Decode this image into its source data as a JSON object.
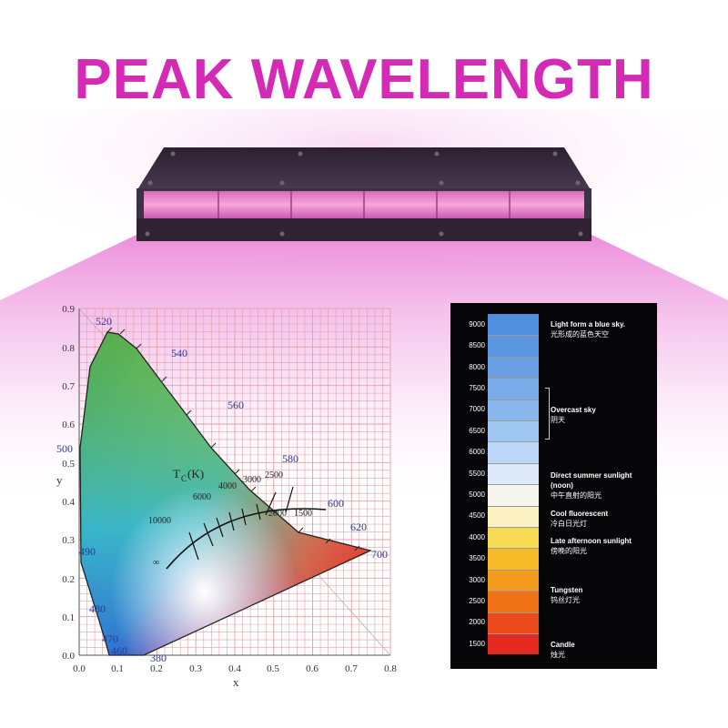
{
  "headline": "PEAK WAVELENGTH",
  "colors": {
    "headline": "#d52ab6",
    "lamp_body": "#3a2d3f",
    "lamp_glow": "#e868d2",
    "chart_bg": "#060608"
  },
  "cie": {
    "y_axis_label": "y",
    "x_axis_label": "x",
    "x_ticks": [
      "0.0",
      "0.1",
      "0.2",
      "0.3",
      "0.4",
      "0.5",
      "0.6",
      "0.7",
      "0.8"
    ],
    "y_ticks": [
      "0.0",
      "0.1",
      "0.2",
      "0.3",
      "0.4",
      "0.5",
      "0.6",
      "0.7",
      "0.8",
      "0.9"
    ],
    "wavelengths": [
      "520",
      "540",
      "560",
      "580",
      "600",
      "620",
      "700",
      "500",
      "490",
      "480",
      "470",
      "460",
      "380"
    ],
    "tc_label": "T",
    "tc_sub": "C",
    "tc_unit": "(K)",
    "cct_marks": [
      "10000",
      "6000",
      "4000",
      "3000",
      "2500",
      "2000",
      "1500",
      "∞"
    ]
  },
  "temperature_scale": {
    "levels": [
      {
        "label": "9000",
        "color": "#4f8fdd"
      },
      {
        "label": "8500",
        "color": "#5b97e0"
      },
      {
        "label": "8000",
        "color": "#689fe3"
      },
      {
        "label": "7500",
        "color": "#78abe8"
      },
      {
        "label": "7000",
        "color": "#89b7ec"
      },
      {
        "label": "6500",
        "color": "#a0c7f1"
      },
      {
        "label": "6000",
        "color": "#bcd8f6"
      },
      {
        "label": "5500",
        "color": "#dde9f8"
      },
      {
        "label": "5000",
        "color": "#f7f6ee"
      },
      {
        "label": "4500",
        "color": "#fbf1c3"
      },
      {
        "label": "4000",
        "color": "#f7db56"
      },
      {
        "label": "3500",
        "color": "#f7bb2a"
      },
      {
        "label": "3000",
        "color": "#f49a1c"
      },
      {
        "label": "2500",
        "color": "#f07216"
      },
      {
        "label": "2000",
        "color": "#eb4a1b"
      },
      {
        "label": "1500",
        "color": "#e52a22"
      }
    ],
    "notes": [
      {
        "en": "Light form a blue sky.",
        "zh": "光形成的蓝色天空"
      },
      {
        "en": "Overcast sky",
        "zh": "阴天"
      },
      {
        "en": "Direct summer sunlight",
        "en2": "(noon)",
        "zh": "中午直射的阳光"
      },
      {
        "en": "Cool fluorescent",
        "zh": "冷白日光灯"
      },
      {
        "en": "Late afternoon sunlight",
        "zh": "傍晚的阳光"
      },
      {
        "en": "Tungsten",
        "zh": "钨丝灯光"
      },
      {
        "en": "Candle",
        "zh": "烛光"
      }
    ]
  }
}
